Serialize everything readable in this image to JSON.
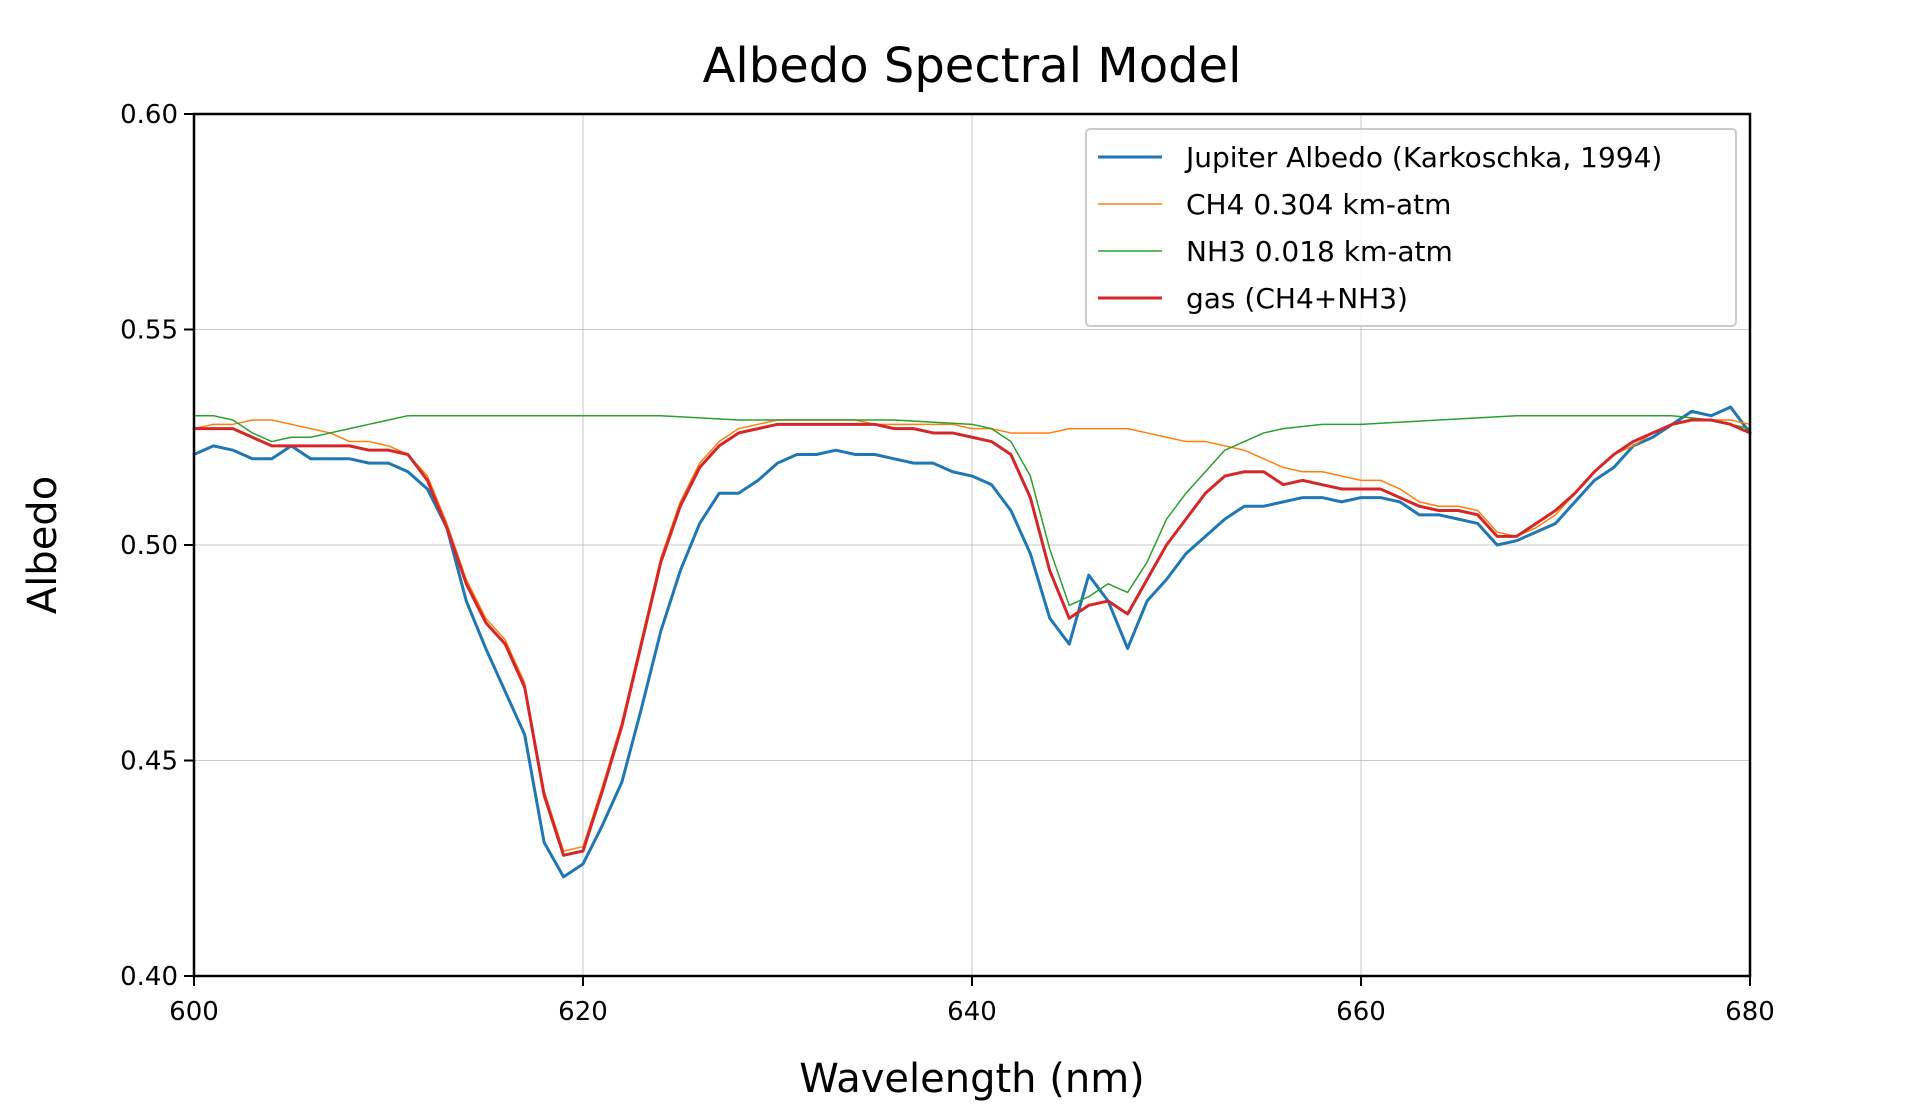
{
  "chart_data": {
    "type": "line",
    "title": "Albedo Spectral Model",
    "xlabel": "Wavelength (nm)",
    "ylabel": "Albedo",
    "xlim": [
      600,
      680
    ],
    "ylim": [
      0.4,
      0.6
    ],
    "xticks": [
      600,
      620,
      640,
      660,
      680
    ],
    "xtick_labels": [
      "600",
      "620",
      "640",
      "660",
      "680"
    ],
    "yticks": [
      0.4,
      0.45,
      0.5,
      0.55,
      0.6
    ],
    "ytick_labels": [
      "0.40",
      "0.45",
      "0.50",
      "0.55",
      "0.60"
    ],
    "grid": true,
    "legend_position": "top-right",
    "series": [
      {
        "name": "Jupiter Albedo (Karkoschka, 1994)",
        "color": "#1f77b4",
        "line_weight": "thick",
        "x": [
          600,
          601,
          602,
          603,
          604,
          605,
          606,
          607,
          608,
          609,
          610,
          611,
          612,
          613,
          614,
          615,
          616,
          617,
          618,
          619,
          620,
          621,
          622,
          623,
          624,
          625,
          626,
          627,
          628,
          629,
          630,
          631,
          632,
          633,
          634,
          635,
          636,
          637,
          638,
          639,
          640,
          641,
          642,
          643,
          644,
          645,
          646,
          647,
          648,
          649,
          650,
          651,
          652,
          653,
          654,
          655,
          656,
          657,
          658,
          659,
          660,
          661,
          662,
          663,
          664,
          665,
          666,
          667,
          668,
          669,
          670,
          671,
          672,
          673,
          674,
          675,
          676,
          677,
          678,
          679,
          680
        ],
        "y": [
          0.521,
          0.523,
          0.522,
          0.52,
          0.52,
          0.523,
          0.52,
          0.52,
          0.52,
          0.519,
          0.519,
          0.517,
          0.513,
          0.504,
          0.487,
          0.476,
          0.466,
          0.456,
          0.431,
          0.423,
          0.426,
          0.435,
          0.445,
          0.462,
          0.48,
          0.494,
          0.505,
          0.512,
          0.512,
          0.515,
          0.519,
          0.521,
          0.521,
          0.522,
          0.521,
          0.521,
          0.52,
          0.519,
          0.519,
          0.517,
          0.516,
          0.514,
          0.508,
          0.498,
          0.483,
          0.477,
          0.493,
          0.487,
          0.476,
          0.487,
          0.492,
          0.498,
          0.502,
          0.506,
          0.509,
          0.509,
          0.51,
          0.511,
          0.511,
          0.51,
          0.511,
          0.511,
          0.51,
          0.507,
          0.507,
          0.506,
          0.505,
          0.5,
          0.501,
          0.503,
          0.505,
          0.51,
          0.515,
          0.518,
          0.523,
          0.525,
          0.528,
          0.531,
          0.53,
          0.532,
          0.526
        ]
      },
      {
        "name": "CH4 0.304 km-atm",
        "color": "#ff7f0e",
        "line_weight": "thin",
        "x": [
          600,
          601,
          602,
          603,
          604,
          605,
          606,
          607,
          608,
          609,
          610,
          611,
          612,
          613,
          614,
          615,
          616,
          617,
          618,
          619,
          620,
          621,
          622,
          623,
          624,
          625,
          626,
          627,
          628,
          629,
          630,
          631,
          632,
          633,
          634,
          635,
          636,
          637,
          638,
          639,
          640,
          641,
          642,
          643,
          644,
          645,
          646,
          647,
          648,
          649,
          650,
          651,
          652,
          653,
          654,
          655,
          656,
          657,
          658,
          659,
          660,
          661,
          662,
          663,
          664,
          665,
          666,
          667,
          668,
          669,
          670,
          671,
          672,
          673,
          674,
          675,
          676,
          677,
          678,
          679,
          680
        ],
        "y": [
          0.527,
          0.528,
          0.528,
          0.529,
          0.529,
          0.528,
          0.527,
          0.526,
          0.524,
          0.524,
          0.523,
          0.521,
          0.516,
          0.505,
          0.492,
          0.483,
          0.478,
          0.468,
          0.443,
          0.429,
          0.43,
          0.444,
          0.459,
          0.478,
          0.497,
          0.51,
          0.519,
          0.524,
          0.527,
          0.528,
          0.529,
          0.529,
          0.529,
          0.529,
          0.529,
          0.528,
          0.528,
          0.528,
          0.528,
          0.528,
          0.527,
          0.527,
          0.526,
          0.526,
          0.526,
          0.527,
          0.527,
          0.527,
          0.527,
          0.526,
          0.525,
          0.524,
          0.524,
          0.523,
          0.522,
          0.52,
          0.518,
          0.517,
          0.517,
          0.516,
          0.515,
          0.515,
          0.513,
          0.51,
          0.509,
          0.509,
          0.508,
          0.503,
          0.502,
          0.504,
          0.507,
          0.512,
          0.517,
          0.521,
          0.523,
          0.526,
          0.528,
          0.529,
          0.529,
          0.529,
          0.528
        ]
      },
      {
        "name": "NH3 0.018 km-atm",
        "color": "#2ca02c",
        "line_weight": "thin",
        "x": [
          600,
          601,
          602,
          603,
          604,
          605,
          606,
          607,
          608,
          609,
          610,
          611,
          612,
          614,
          616,
          618,
          620,
          624,
          628,
          632,
          636,
          640,
          641,
          642,
          643,
          644,
          645,
          646,
          647,
          648,
          649,
          650,
          651,
          652,
          653,
          654,
          655,
          656,
          658,
          660,
          664,
          668,
          672,
          676,
          678,
          680
        ],
        "y": [
          0.53,
          0.53,
          0.529,
          0.526,
          0.524,
          0.525,
          0.525,
          0.526,
          0.527,
          0.528,
          0.529,
          0.53,
          0.53,
          0.53,
          0.53,
          0.53,
          0.53,
          0.53,
          0.529,
          0.529,
          0.529,
          0.528,
          0.527,
          0.524,
          0.516,
          0.499,
          0.486,
          0.488,
          0.491,
          0.489,
          0.496,
          0.506,
          0.512,
          0.517,
          0.522,
          0.524,
          0.526,
          0.527,
          0.528,
          0.528,
          0.529,
          0.53,
          0.53,
          0.53,
          0.529,
          0.527
        ]
      },
      {
        "name": "gas (CH4+NH3)",
        "color": "#d62728",
        "line_weight": "thick",
        "x": [
          600,
          601,
          602,
          603,
          604,
          605,
          606,
          607,
          608,
          609,
          610,
          611,
          612,
          613,
          614,
          615,
          616,
          617,
          618,
          619,
          620,
          621,
          622,
          623,
          624,
          625,
          626,
          627,
          628,
          629,
          630,
          631,
          632,
          633,
          634,
          635,
          636,
          637,
          638,
          639,
          640,
          641,
          642,
          643,
          644,
          645,
          646,
          647,
          648,
          649,
          650,
          651,
          652,
          653,
          654,
          655,
          656,
          657,
          658,
          659,
          660,
          661,
          662,
          663,
          664,
          665,
          666,
          667,
          668,
          669,
          670,
          671,
          672,
          673,
          674,
          675,
          676,
          677,
          678,
          679,
          680
        ],
        "y": [
          0.527,
          0.527,
          0.527,
          0.525,
          0.523,
          0.523,
          0.523,
          0.523,
          0.523,
          0.522,
          0.522,
          0.521,
          0.515,
          0.504,
          0.491,
          0.482,
          0.477,
          0.467,
          0.442,
          0.428,
          0.429,
          0.443,
          0.458,
          0.477,
          0.496,
          0.509,
          0.518,
          0.523,
          0.526,
          0.527,
          0.528,
          0.528,
          0.528,
          0.528,
          0.528,
          0.528,
          0.527,
          0.527,
          0.526,
          0.526,
          0.525,
          0.524,
          0.521,
          0.511,
          0.494,
          0.483,
          0.486,
          0.487,
          0.484,
          0.492,
          0.5,
          0.506,
          0.512,
          0.516,
          0.517,
          0.517,
          0.514,
          0.515,
          0.514,
          0.513,
          0.513,
          0.513,
          0.511,
          0.509,
          0.508,
          0.508,
          0.507,
          0.502,
          0.502,
          0.505,
          0.508,
          0.512,
          0.517,
          0.521,
          0.524,
          0.526,
          0.528,
          0.529,
          0.529,
          0.528,
          0.526
        ]
      }
    ]
  }
}
